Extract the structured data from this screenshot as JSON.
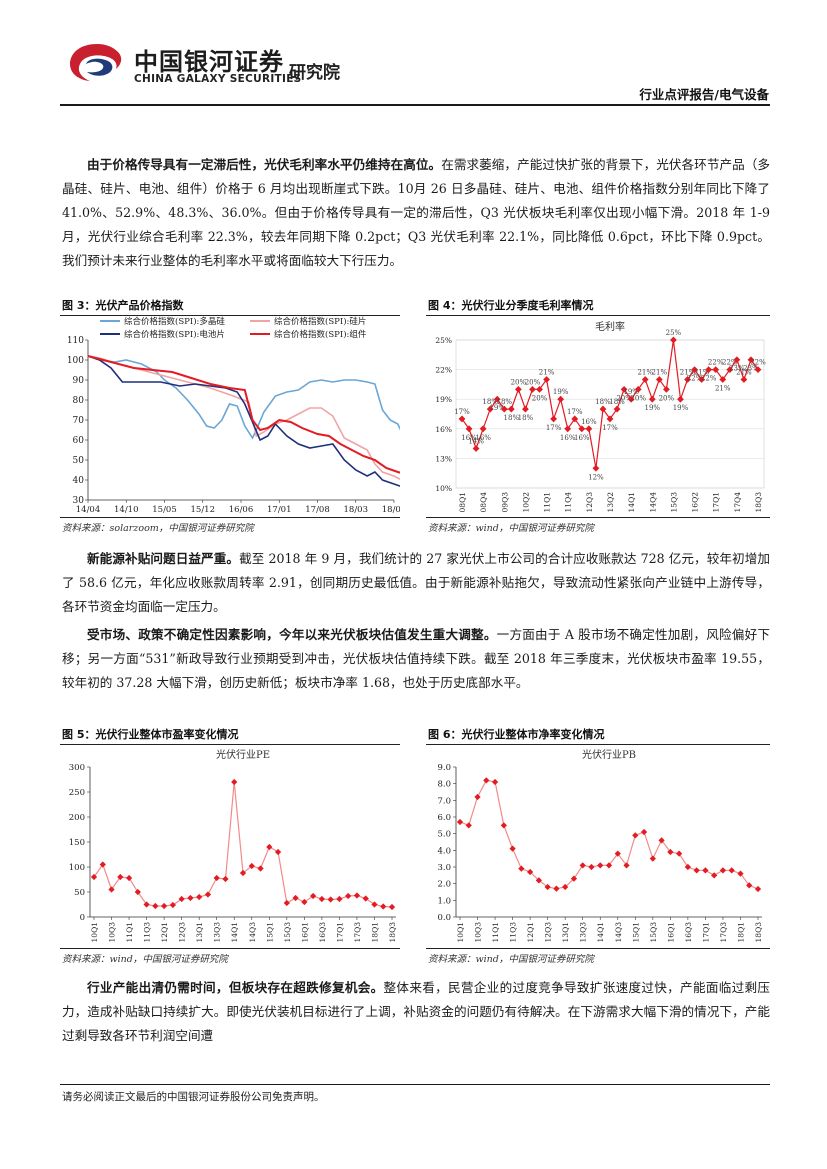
{
  "header": {
    "brand_cn": "中国银河证券",
    "brand_en": "CHINA GALAXY SECURITIES",
    "institute": "研究院",
    "report_type": "行业点评报告/电气设备"
  },
  "colors": {
    "red": "#e31b23",
    "blue": "#6aa6d6",
    "pink": "#f2a3a3",
    "navy": "#1f2f7a",
    "brand_red": "#c8202f",
    "brand_navy": "#1f3b7a"
  },
  "paragraphs": {
    "p1": {
      "lead": "由于价格传导具有一定滞后性，光伏毛利率水平仍维持在高位。",
      "body": "在需求萎缩，产能过快扩张的背景下，光伏各环节产品（多晶硅、硅片、电池、组件）价格于 6 月均出现断崖式下跌。10月 26 日多晶硅、硅片、电池、组件价格指数分别年同比下降了 41.0%、52.9%、48.3%、36.0%。但由于价格传导具有一定的滞后性，Q3 光伏板块毛利率仅出现小幅下滑。2018 年 1-9月，光伏行业综合毛利率 22.3%，较去年同期下降 0.2pct；Q3 光伏毛利率 22.1%，同比降低 0.6pct，环比下降 0.9pct。我们预计未来行业整体的毛利率水平或将面临较大下行压力。"
    },
    "p2": {
      "lead": "新能源补贴问题日益严重。",
      "body": "截至 2018 年 9 月，我们统计的 27 家光伏上市公司的合计应收账款达 728 亿元，较年初增加了 58.6 亿元，年化应收账款周转率 2.91，创同期历史最低值。由于新能源补贴拖欠，导致流动性紧张向产业链中上游传导，各环节资金均面临一定压力。"
    },
    "p3": {
      "lead": "受市场、政策不确定性因素影响，今年以来光伏板块估值发生重大调整。",
      "body": "一方面由于 A 股市场不确定性加剧，风险偏好下移；另一方面“531”新政导致行业预期受到冲击，光伏板块估值持续下跌。截至 2018 年三季度末，光伏板块市盈率 19.55，较年初的 37.28 大幅下滑，创历史新低；板块市净率 1.68，也处于历史底部水平。"
    },
    "p4": {
      "lead": "行业产能出清仍需时间，但板块存在超跌修复机会。",
      "body": "整体来看，民营企业的过度竞争导致扩张速度过快，产能面临过剩压力，造成补贴缺口持续扩大。即使光伏装机目标进行了上调，补贴资金的问题仍有待解决。在下游需求大幅下滑的情况下，产能过剩导致各环节利润空间遭"
    }
  },
  "figures": {
    "fig3": {
      "title": "图 3：光伏产品价格指数",
      "source": "资料来源：solarzoom，中国银河证券研究院"
    },
    "fig4": {
      "title": "图 4：光伏行业分季度毛利率情况",
      "source": "资料来源：wind，中国银河证券研究院"
    },
    "fig5": {
      "title": "图 5：光伏行业整体市盈率变化情况",
      "source": "资料来源：wind，中国银河证券研究院"
    },
    "fig6": {
      "title": "图 6：光伏行业整体市净率变化情况",
      "source": "资料来源：wind，中国银河证券研究院"
    }
  },
  "footer": {
    "disclaimer": "请务必阅读正文最后的中国银河证券股份公司免责声明。"
  },
  "chart_data": [
    {
      "id": "fig3",
      "type": "line",
      "title": "",
      "x": [
        "14/04",
        "14/10",
        "15/05",
        "15/12",
        "16/06",
        "17/01",
        "17/08",
        "18/03",
        "18/09"
      ],
      "ylim": [
        30,
        110
      ],
      "yticks": [
        30,
        40,
        50,
        60,
        70,
        80,
        90,
        100,
        110
      ],
      "legend": [
        "综合价格指数(SPI):多晶硅",
        "综合价格指数(SPI):硅片",
        "综合价格指数(SPI):电池片",
        "综合价格指数(SPI):组件"
      ],
      "series": [
        {
          "name": "综合价格指数(SPI):多晶硅",
          "color": "#6aa6d6",
          "points": [
            [
              0,
              102
            ],
            [
              0.3,
              100
            ],
            [
              0.7,
              99
            ],
            [
              1.0,
              100
            ],
            [
              1.4,
              98
            ],
            [
              1.8,
              94
            ],
            [
              2.0,
              90
            ],
            [
              2.3,
              86
            ],
            [
              2.6,
              80
            ],
            [
              2.9,
              73
            ],
            [
              3.1,
              67
            ],
            [
              3.3,
              66
            ],
            [
              3.5,
              70
            ],
            [
              3.7,
              78
            ],
            [
              3.9,
              77
            ],
            [
              4.1,
              67
            ],
            [
              4.3,
              61
            ],
            [
              4.4,
              65
            ],
            [
              4.6,
              74
            ],
            [
              4.9,
              82
            ],
            [
              5.2,
              84
            ],
            [
              5.5,
              85
            ],
            [
              5.8,
              89
            ],
            [
              6.1,
              90
            ],
            [
              6.4,
              89
            ],
            [
              6.7,
              90
            ],
            [
              7.0,
              90
            ],
            [
              7.3,
              89
            ],
            [
              7.5,
              88
            ],
            [
              7.7,
              75
            ],
            [
              7.9,
              70
            ],
            [
              8.1,
              68
            ],
            [
              8.3,
              60
            ],
            [
              8.5,
              56
            ]
          ]
        },
        {
          "name": "综合价格指数(SPI):硅片",
          "color": "#f2a3a3",
          "points": [
            [
              0,
              102
            ],
            [
              0.3,
              101
            ],
            [
              0.8,
              98
            ],
            [
              1.4,
              95
            ],
            [
              2.0,
              92
            ],
            [
              2.6,
              89
            ],
            [
              3.2,
              86
            ],
            [
              3.8,
              82
            ],
            [
              4.2,
              79
            ],
            [
              4.4,
              62
            ],
            [
              4.6,
              64
            ],
            [
              4.9,
              68
            ],
            [
              5.2,
              70
            ],
            [
              5.5,
              73
            ],
            [
              5.8,
              76
            ],
            [
              6.1,
              76
            ],
            [
              6.4,
              72
            ],
            [
              6.7,
              61
            ],
            [
              7.0,
              58
            ],
            [
              7.3,
              55
            ],
            [
              7.5,
              48
            ],
            [
              7.7,
              44
            ],
            [
              8.0,
              42
            ],
            [
              8.3,
              39
            ],
            [
              8.5,
              38
            ]
          ]
        },
        {
          "name": "综合价格指数(SPI):电池片",
          "color": "#1f2f7a",
          "points": [
            [
              0,
              102
            ],
            [
              0.3,
              100
            ],
            [
              0.6,
              96
            ],
            [
              0.9,
              89
            ],
            [
              1.4,
              89
            ],
            [
              1.9,
              89
            ],
            [
              2.4,
              87
            ],
            [
              2.8,
              88
            ],
            [
              3.2,
              87
            ],
            [
              3.6,
              86
            ],
            [
              3.9,
              84
            ],
            [
              4.1,
              78
            ],
            [
              4.3,
              69
            ],
            [
              4.5,
              60
            ],
            [
              4.7,
              62
            ],
            [
              4.9,
              68
            ],
            [
              5.2,
              62
            ],
            [
              5.5,
              58
            ],
            [
              5.8,
              56
            ],
            [
              6.1,
              57
            ],
            [
              6.4,
              58
            ],
            [
              6.7,
              50
            ],
            [
              7.0,
              45
            ],
            [
              7.3,
              42
            ],
            [
              7.5,
              44
            ],
            [
              7.7,
              40
            ],
            [
              8.0,
              38
            ],
            [
              8.3,
              36
            ],
            [
              8.5,
              35
            ]
          ]
        },
        {
          "name": "综合价格指数(SPI):组件",
          "color": "#e31b23",
          "points": [
            [
              0,
              102
            ],
            [
              0.4,
              100
            ],
            [
              0.8,
              98
            ],
            [
              1.2,
              96
            ],
            [
              1.7,
              95
            ],
            [
              2.2,
              94
            ],
            [
              2.7,
              91
            ],
            [
              3.2,
              88
            ],
            [
              3.7,
              86
            ],
            [
              4.1,
              85
            ],
            [
              4.3,
              70
            ],
            [
              4.5,
              65
            ],
            [
              4.7,
              66
            ],
            [
              5.0,
              70
            ],
            [
              5.3,
              69
            ],
            [
              5.6,
              66
            ],
            [
              6.0,
              63
            ],
            [
              6.3,
              62
            ],
            [
              6.6,
              58
            ],
            [
              6.9,
              55
            ],
            [
              7.2,
              52
            ],
            [
              7.5,
              50
            ],
            [
              7.8,
              46
            ],
            [
              8.1,
              44
            ],
            [
              8.3,
              43
            ],
            [
              8.5,
              41
            ]
          ]
        }
      ]
    },
    {
      "id": "fig4",
      "type": "line",
      "title": "毛利率",
      "categories": [
        "08Q1",
        "08Q2",
        "08Q3",
        "08Q4",
        "09Q1",
        "09Q2",
        "09Q3",
        "09Q4",
        "10Q1",
        "10Q2",
        "10Q3",
        "10Q4",
        "11Q1",
        "11Q2",
        "11Q3",
        "11Q4",
        "12Q1",
        "12Q2",
        "12Q3",
        "12Q4",
        "13Q1",
        "13Q2",
        "13Q3",
        "13Q4",
        "14Q1",
        "14Q2",
        "14Q3",
        "14Q4",
        "15Q1",
        "15Q2",
        "15Q3",
        "15Q4",
        "16Q1",
        "16Q2",
        "16Q3",
        "16Q4",
        "17Q1",
        "17Q2",
        "17Q3",
        "17Q4",
        "18Q1",
        "18Q2",
        "18Q3"
      ],
      "xtick_labels": [
        "08Q1",
        "08Q4",
        "09Q3",
        "10Q2",
        "11Q1",
        "11Q4",
        "12Q3",
        "13Q2",
        "14Q1",
        "14Q4",
        "15Q3",
        "16Q2",
        "17Q1",
        "17Q4",
        "18Q3"
      ],
      "values": [
        17,
        16,
        14,
        16,
        18,
        19,
        18,
        18,
        20,
        18,
        20,
        20,
        21,
        17,
        19,
        16,
        17,
        16,
        16,
        12,
        18,
        17,
        18,
        20,
        19,
        20,
        21,
        19,
        21,
        20,
        25,
        19,
        21,
        22,
        21,
        22,
        22,
        21,
        22,
        23,
        21,
        23,
        22
      ],
      "labels": [
        "17%",
        "16%",
        "14%",
        "16%",
        "18%",
        "19%",
        "18%",
        "18%",
        "20%",
        "18%",
        "20%",
        "20%",
        "21%",
        "17%",
        "19%",
        "16%",
        "17%",
        "16%",
        "16%",
        "12%",
        "18%",
        "17%",
        "18%",
        "20%",
        "19%",
        "20%",
        "21%",
        "19%",
        "21%",
        "20%",
        "25%",
        "19%",
        "21%",
        "22%",
        "21%",
        "22%",
        "22%",
        "21%",
        "22%",
        "23%",
        "21%",
        "23%",
        "22%"
      ],
      "ylim": [
        10,
        25
      ],
      "yticks": [
        "10%",
        "13%",
        "16%",
        "19%",
        "22%",
        "25%"
      ],
      "color": "#e31b23"
    },
    {
      "id": "fig5",
      "type": "line",
      "title": "光伏行业PE",
      "categories": [
        "10Q1",
        "10Q2",
        "10Q3",
        "10Q4",
        "11Q1",
        "11Q2",
        "11Q3",
        "11Q4",
        "12Q1",
        "12Q2",
        "12Q3",
        "12Q4",
        "13Q1",
        "13Q2",
        "13Q3",
        "13Q4",
        "14Q1",
        "14Q2",
        "14Q3",
        "14Q4",
        "15Q1",
        "15Q2",
        "15Q3",
        "15Q4",
        "16Q1",
        "16Q2",
        "16Q3",
        "16Q4",
        "17Q1",
        "17Q2",
        "17Q3",
        "17Q4",
        "18Q1",
        "18Q2",
        "18Q3"
      ],
      "xtick_labels": [
        "10Q1",
        "10Q3",
        "11Q1",
        "11Q3",
        "12Q1",
        "12Q3",
        "13Q1",
        "13Q3",
        "14Q1",
        "14Q3",
        "15Q1",
        "15Q3",
        "16Q1",
        "16Q3",
        "17Q1",
        "17Q3",
        "18Q1",
        "18Q3"
      ],
      "values": [
        80,
        105,
        55,
        80,
        78,
        50,
        25,
        22,
        22,
        24,
        36,
        38,
        40,
        45,
        78,
        76,
        270,
        88,
        102,
        97,
        140,
        130,
        28,
        38,
        30,
        42,
        36,
        35,
        36,
        42,
        43,
        37,
        25,
        21,
        20
      ],
      "ylim": [
        0,
        300
      ],
      "yticks": [
        0,
        50,
        100,
        150,
        200,
        250,
        300
      ],
      "color": "#f28a8a"
    },
    {
      "id": "fig6",
      "type": "line",
      "title": "光伏行业PB",
      "categories": [
        "10Q1",
        "10Q2",
        "10Q3",
        "10Q4",
        "11Q1",
        "11Q2",
        "11Q3",
        "11Q4",
        "12Q1",
        "12Q2",
        "12Q3",
        "12Q4",
        "13Q1",
        "13Q2",
        "13Q3",
        "13Q4",
        "14Q1",
        "14Q2",
        "14Q3",
        "14Q4",
        "15Q1",
        "15Q2",
        "15Q3",
        "15Q4",
        "16Q1",
        "16Q2",
        "16Q3",
        "16Q4",
        "17Q1",
        "17Q2",
        "17Q3",
        "17Q4",
        "18Q1",
        "18Q2",
        "18Q3"
      ],
      "xtick_labels": [
        "10Q1",
        "10Q3",
        "11Q1",
        "11Q3",
        "12Q1",
        "12Q3",
        "13Q1",
        "13Q3",
        "14Q1",
        "14Q3",
        "15Q1",
        "15Q3",
        "16Q1",
        "16Q3",
        "17Q1",
        "17Q3",
        "18Q1",
        "18Q3"
      ],
      "values": [
        5.7,
        5.5,
        7.2,
        8.2,
        8.1,
        5.5,
        4.1,
        2.9,
        2.7,
        2.2,
        1.8,
        1.7,
        1.8,
        2.3,
        3.1,
        3.0,
        3.1,
        3.1,
        3.8,
        3.1,
        4.9,
        5.1,
        3.5,
        4.6,
        3.9,
        3.8,
        3.0,
        2.8,
        2.8,
        2.5,
        2.8,
        2.8,
        2.6,
        1.9,
        1.68
      ],
      "ylim": [
        0,
        9
      ],
      "yticks": [
        "0.0",
        "1.0",
        "2.0",
        "3.0",
        "4.0",
        "5.0",
        "6.0",
        "7.0",
        "8.0",
        "9.0"
      ],
      "color": "#f28a8a"
    }
  ]
}
